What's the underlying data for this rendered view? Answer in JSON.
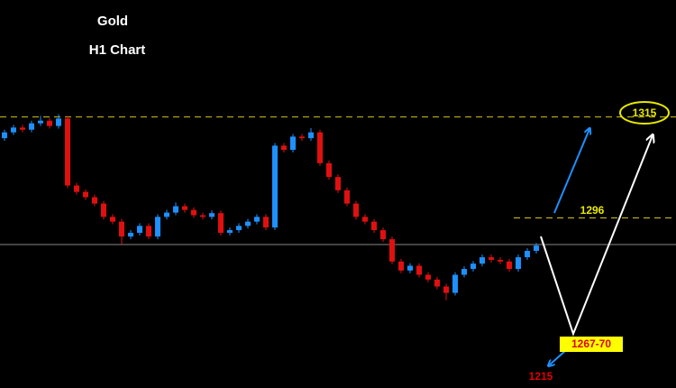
{
  "chart_data": {
    "type": "candlestick",
    "title": "Gold",
    "subtitle": "H1 Chart",
    "ylim": [
      1264,
      1337
    ],
    "up_color": "#1e90ff",
    "down_color": "#e01010",
    "levels": [
      1315,
      1296
    ],
    "level_color": "#d4c41a",
    "current_price": 1291,
    "annotations": [
      "1267-70",
      "1215"
    ],
    "candles": [
      [
        1311.0,
        1312.6,
        1310.5,
        1312.1
      ],
      [
        1312.1,
        1313.5,
        1311.6,
        1313.0
      ],
      [
        1313.0,
        1313.5,
        1312.1,
        1312.6
      ],
      [
        1312.6,
        1314.3,
        1312.1,
        1313.8
      ],
      [
        1313.8,
        1315.2,
        1313.3,
        1314.3
      ],
      [
        1314.3,
        1314.8,
        1312.8,
        1313.3
      ],
      [
        1313.3,
        1315.5,
        1312.8,
        1314.7
      ],
      [
        1314.7,
        1315.2,
        1301.6,
        1302.1
      ],
      [
        1302.1,
        1302.6,
        1300.4,
        1300.9
      ],
      [
        1300.9,
        1301.4,
        1299.4,
        1299.9
      ],
      [
        1299.9,
        1300.4,
        1298.2,
        1298.7
      ],
      [
        1298.7,
        1299.2,
        1295.7,
        1296.2
      ],
      [
        1296.2,
        1296.7,
        1294.8,
        1295.3
      ],
      [
        1295.3,
        1295.8,
        1291.0,
        1292.5
      ],
      [
        1292.5,
        1293.7,
        1292.0,
        1293.2
      ],
      [
        1293.2,
        1295.0,
        1292.7,
        1294.5
      ],
      [
        1294.5,
        1295.0,
        1292.0,
        1292.5
      ],
      [
        1292.5,
        1296.7,
        1292.0,
        1296.2
      ],
      [
        1296.2,
        1297.5,
        1295.7,
        1297.0
      ],
      [
        1297.0,
        1298.9,
        1296.5,
        1298.2
      ],
      [
        1298.2,
        1298.7,
        1297.0,
        1297.5
      ],
      [
        1297.5,
        1298.0,
        1296.0,
        1296.5
      ],
      [
        1296.5,
        1297.0,
        1295.7,
        1296.2
      ],
      [
        1296.2,
        1297.4,
        1295.7,
        1296.9
      ],
      [
        1296.9,
        1297.4,
        1292.7,
        1293.2
      ],
      [
        1293.2,
        1294.2,
        1292.7,
        1293.7
      ],
      [
        1293.7,
        1295.0,
        1293.2,
        1294.5
      ],
      [
        1294.5,
        1295.8,
        1294.0,
        1295.3
      ],
      [
        1295.3,
        1296.7,
        1294.8,
        1296.2
      ],
      [
        1296.2,
        1296.7,
        1293.7,
        1294.2
      ],
      [
        1294.2,
        1310.1,
        1293.7,
        1309.6
      ],
      [
        1309.6,
        1310.1,
        1308.3,
        1308.8
      ],
      [
        1308.8,
        1311.8,
        1308.3,
        1311.3
      ],
      [
        1311.3,
        1311.8,
        1310.5,
        1311.0
      ],
      [
        1311.0,
        1312.9,
        1310.5,
        1312.1
      ],
      [
        1312.1,
        1312.6,
        1305.8,
        1306.3
      ],
      [
        1306.3,
        1306.8,
        1303.2,
        1303.7
      ],
      [
        1303.7,
        1304.2,
        1300.7,
        1301.2
      ],
      [
        1301.2,
        1301.7,
        1298.2,
        1298.7
      ],
      [
        1298.7,
        1299.2,
        1295.7,
        1296.2
      ],
      [
        1296.2,
        1296.7,
        1294.8,
        1295.3
      ],
      [
        1295.3,
        1295.8,
        1293.2,
        1293.7
      ],
      [
        1293.7,
        1294.2,
        1291.5,
        1292.0
      ],
      [
        1292.0,
        1292.5,
        1287.3,
        1287.8
      ],
      [
        1287.8,
        1288.3,
        1285.6,
        1286.1
      ],
      [
        1286.1,
        1287.5,
        1285.6,
        1287.0
      ],
      [
        1287.0,
        1287.5,
        1284.8,
        1285.3
      ],
      [
        1285.3,
        1285.8,
        1283.9,
        1284.4
      ],
      [
        1284.4,
        1284.9,
        1282.6,
        1283.1
      ],
      [
        1283.1,
        1283.6,
        1280.5,
        1281.9
      ],
      [
        1281.9,
        1285.8,
        1281.4,
        1285.3
      ],
      [
        1285.3,
        1286.9,
        1284.8,
        1286.4
      ],
      [
        1286.4,
        1287.9,
        1285.9,
        1287.4
      ],
      [
        1287.4,
        1289.1,
        1286.9,
        1288.6
      ],
      [
        1288.6,
        1289.1,
        1287.6,
        1288.1
      ],
      [
        1288.1,
        1288.6,
        1287.3,
        1287.8
      ],
      [
        1287.8,
        1288.3,
        1285.9,
        1286.4
      ],
      [
        1286.4,
        1289.1,
        1285.9,
        1288.6
      ],
      [
        1288.6,
        1290.3,
        1288.1,
        1289.8
      ],
      [
        1289.8,
        1291.3,
        1289.3,
        1290.8
      ]
    ]
  }
}
